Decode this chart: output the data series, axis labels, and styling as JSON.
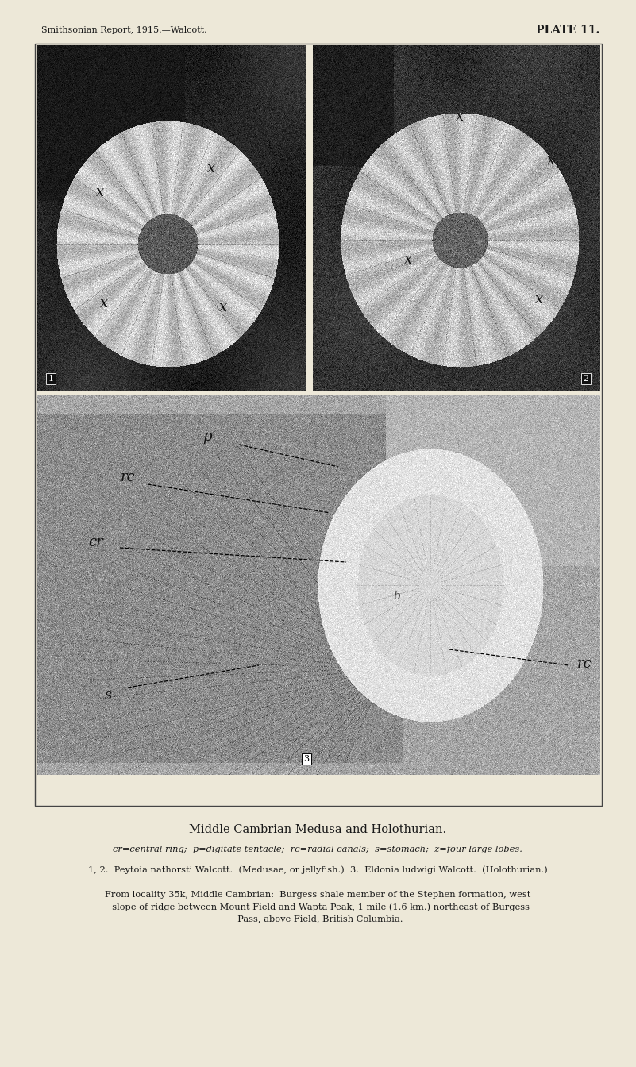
{
  "page_bg": "#ede8d8",
  "border_color": "#444444",
  "header_left": "Smithsonian Report, 1915.—Walcott.",
  "header_right": "PLATE 11.",
  "title_small_caps": "Middle Cambrian Medusa and Holothurian.",
  "caption_italic": "cr=central ring;  p=digitate tentacle;  rc=radial canals;  s=stomach;  z=four large lobes.",
  "caption_line2": "1, 2.  Peytoia nathorsti  Walcott.  (Medusae, or jellyfish.)  3.  Eldonia ludwigi  Walcott.  (Holothurian.)",
  "caption_line3a": "From locality 35k, Middle Cambrian:  Burgess shale member of the Stephen formation, west",
  "caption_line3b": "slope of ridge between Mount Field and Wapta Peak, 1 mile (1.6 km.) northeast of Burgess",
  "caption_line3c": "Pass, above Field, British Columbia.",
  "text_color": "#1a1a1a",
  "seed": 42
}
